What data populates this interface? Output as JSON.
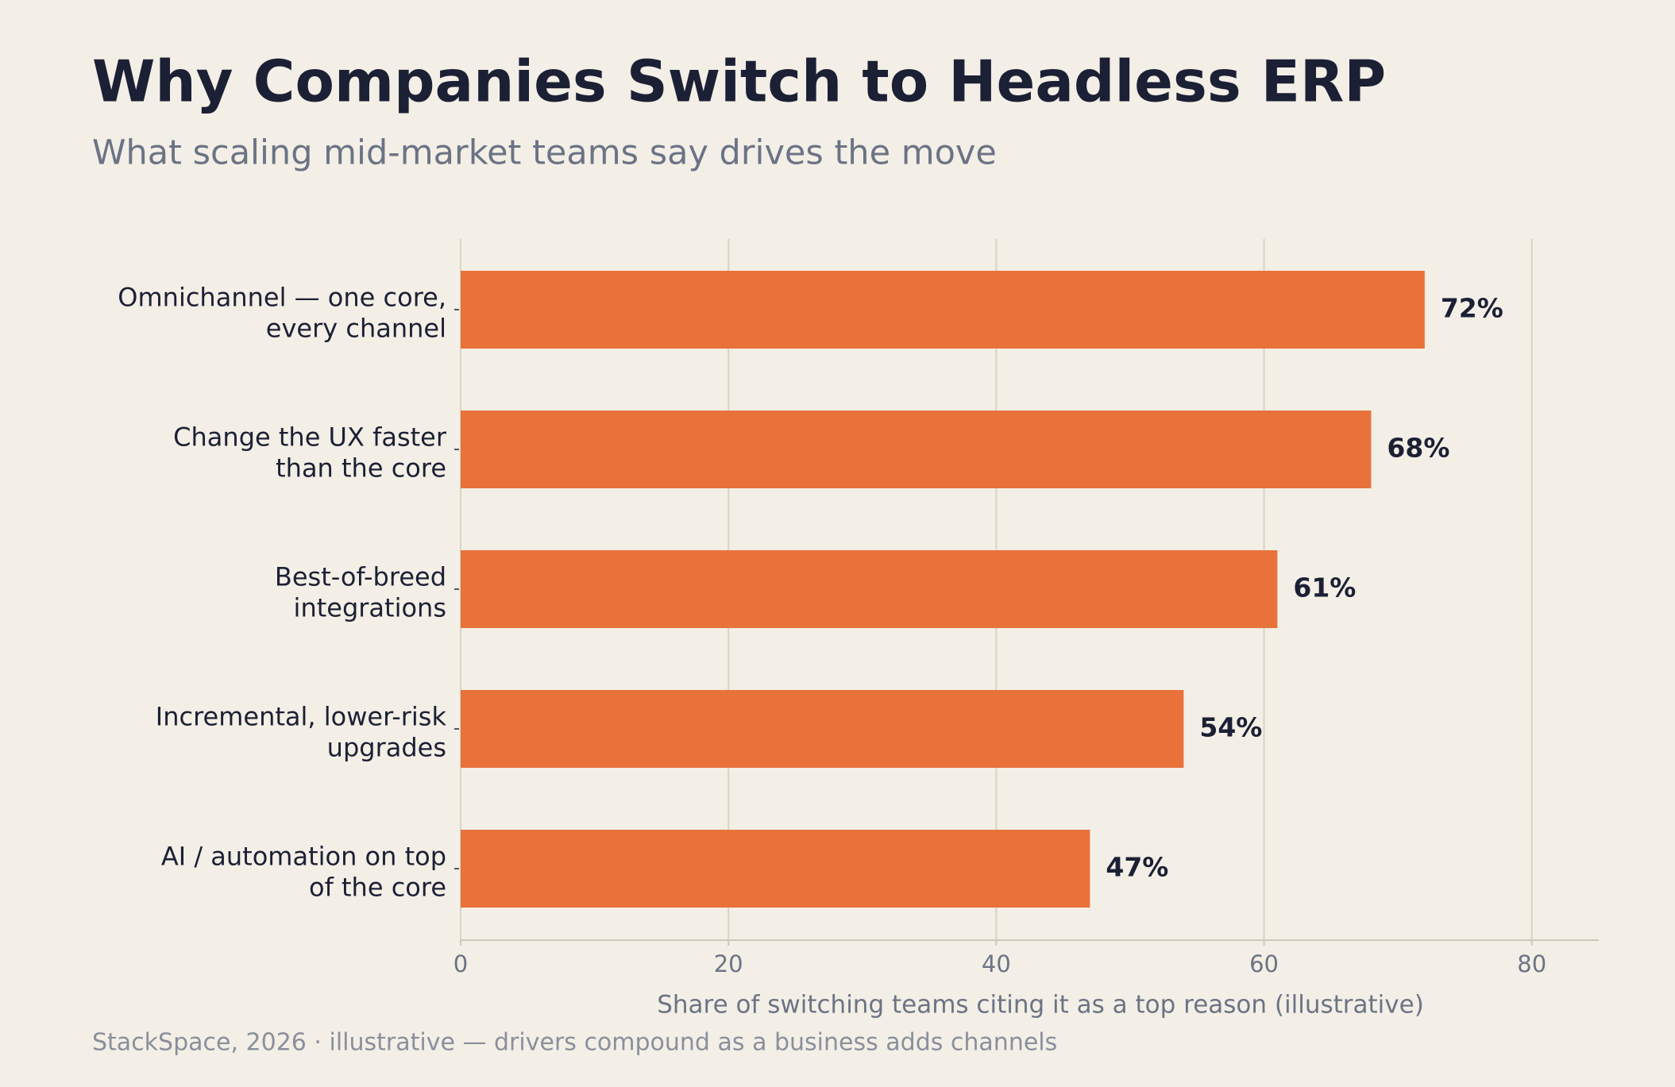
{
  "chart_data": {
    "type": "bar",
    "orientation": "horizontal",
    "title": "Why Companies Switch to Headless ERP",
    "subtitle": "What scaling mid-market teams say drives the move",
    "categories": [
      "Omnichannel — one core,\nevery channel",
      "Change the UX faster\nthan the core",
      "Best-of-breed\nintegrations",
      "Incremental, lower-risk\nupgrades",
      "AI / automation on top\nof the core"
    ],
    "values": [
      72,
      68,
      61,
      54,
      47
    ],
    "value_labels": [
      "72%",
      "68%",
      "61%",
      "54%",
      "47%"
    ],
    "color": "#e8723a",
    "xlim": [
      0,
      85
    ],
    "xticks": [
      0,
      20,
      40,
      60,
      80
    ],
    "grid": true,
    "xlabel": "Share of switching teams citing it as a top reason  (illustrative)",
    "footer": "StackSpace, 2026  ·  illustrative — drivers compound as a business adds channels"
  }
}
